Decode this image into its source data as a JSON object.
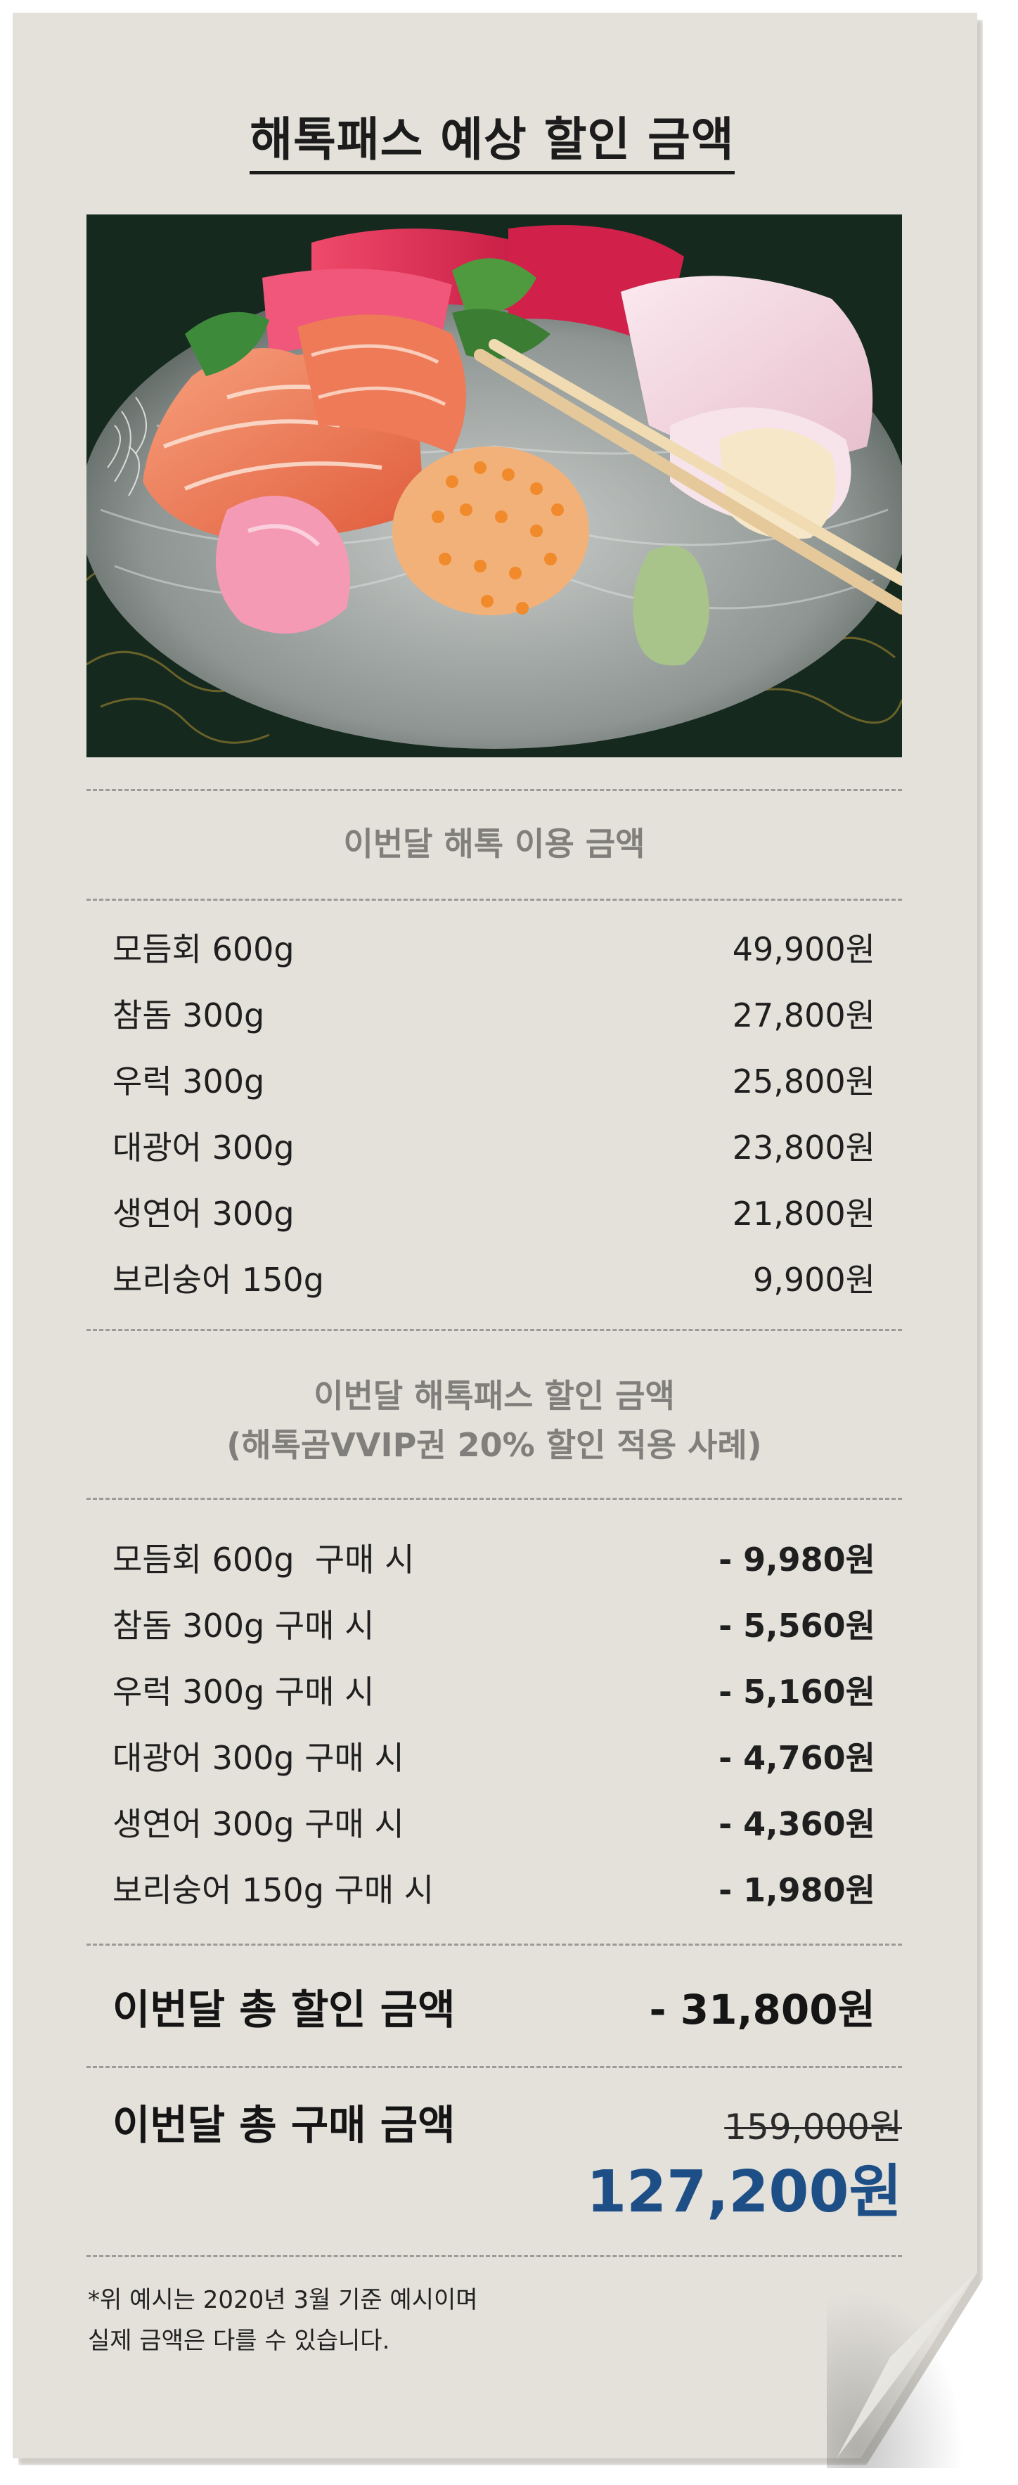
{
  "title": "해톡패스 예상 할인 금액",
  "usage": {
    "heading": "이번달 해톡 이용 금액",
    "items": [
      {
        "name": "모듬회 600g",
        "amount": "49,900원"
      },
      {
        "name": "참돔 300g",
        "amount": "27,800원"
      },
      {
        "name": "우럭 300g",
        "amount": "25,800원"
      },
      {
        "name": "대광어 300g",
        "amount": "23,800원"
      },
      {
        "name": "생연어 300g",
        "amount": "21,800원"
      },
      {
        "name": "보리숭어 150g",
        "amount": "9,900원"
      }
    ]
  },
  "discount": {
    "heading_line1": "이번달 해톡패스 할인 금액",
    "heading_line2": "(해톡곰VVIP권 20% 할인 적용 사례)",
    "items": [
      {
        "name": "모듬회 600g  구매 시",
        "amount": "- 9,980원"
      },
      {
        "name": "참돔 300g 구매 시",
        "amount": "- 5,560원"
      },
      {
        "name": "우럭 300g 구매 시",
        "amount": "- 5,160원"
      },
      {
        "name": "대광어 300g 구매 시",
        "amount": "- 4,760원"
      },
      {
        "name": "생연어 300g 구매 시",
        "amount": "- 4,360원"
      },
      {
        "name": "보리숭어 150g 구매 시",
        "amount": "- 1,980원"
      }
    ]
  },
  "total_discount": {
    "label": "이번달 총 할인 금액",
    "amount": "- 31,800원"
  },
  "total_purchase": {
    "label": "이번달 총 구매 금액",
    "original": "159,000원",
    "final": "127,200원"
  },
  "note": {
    "line1": "*위 예시는 2020년 3월 기준 예시이며",
    "line2": "실제 금액은 다를 수 있습니다."
  },
  "colors": {
    "paper": "#e3e1da",
    "accent_blue": "#1d4e86",
    "heading_gray": "#807f7b"
  }
}
